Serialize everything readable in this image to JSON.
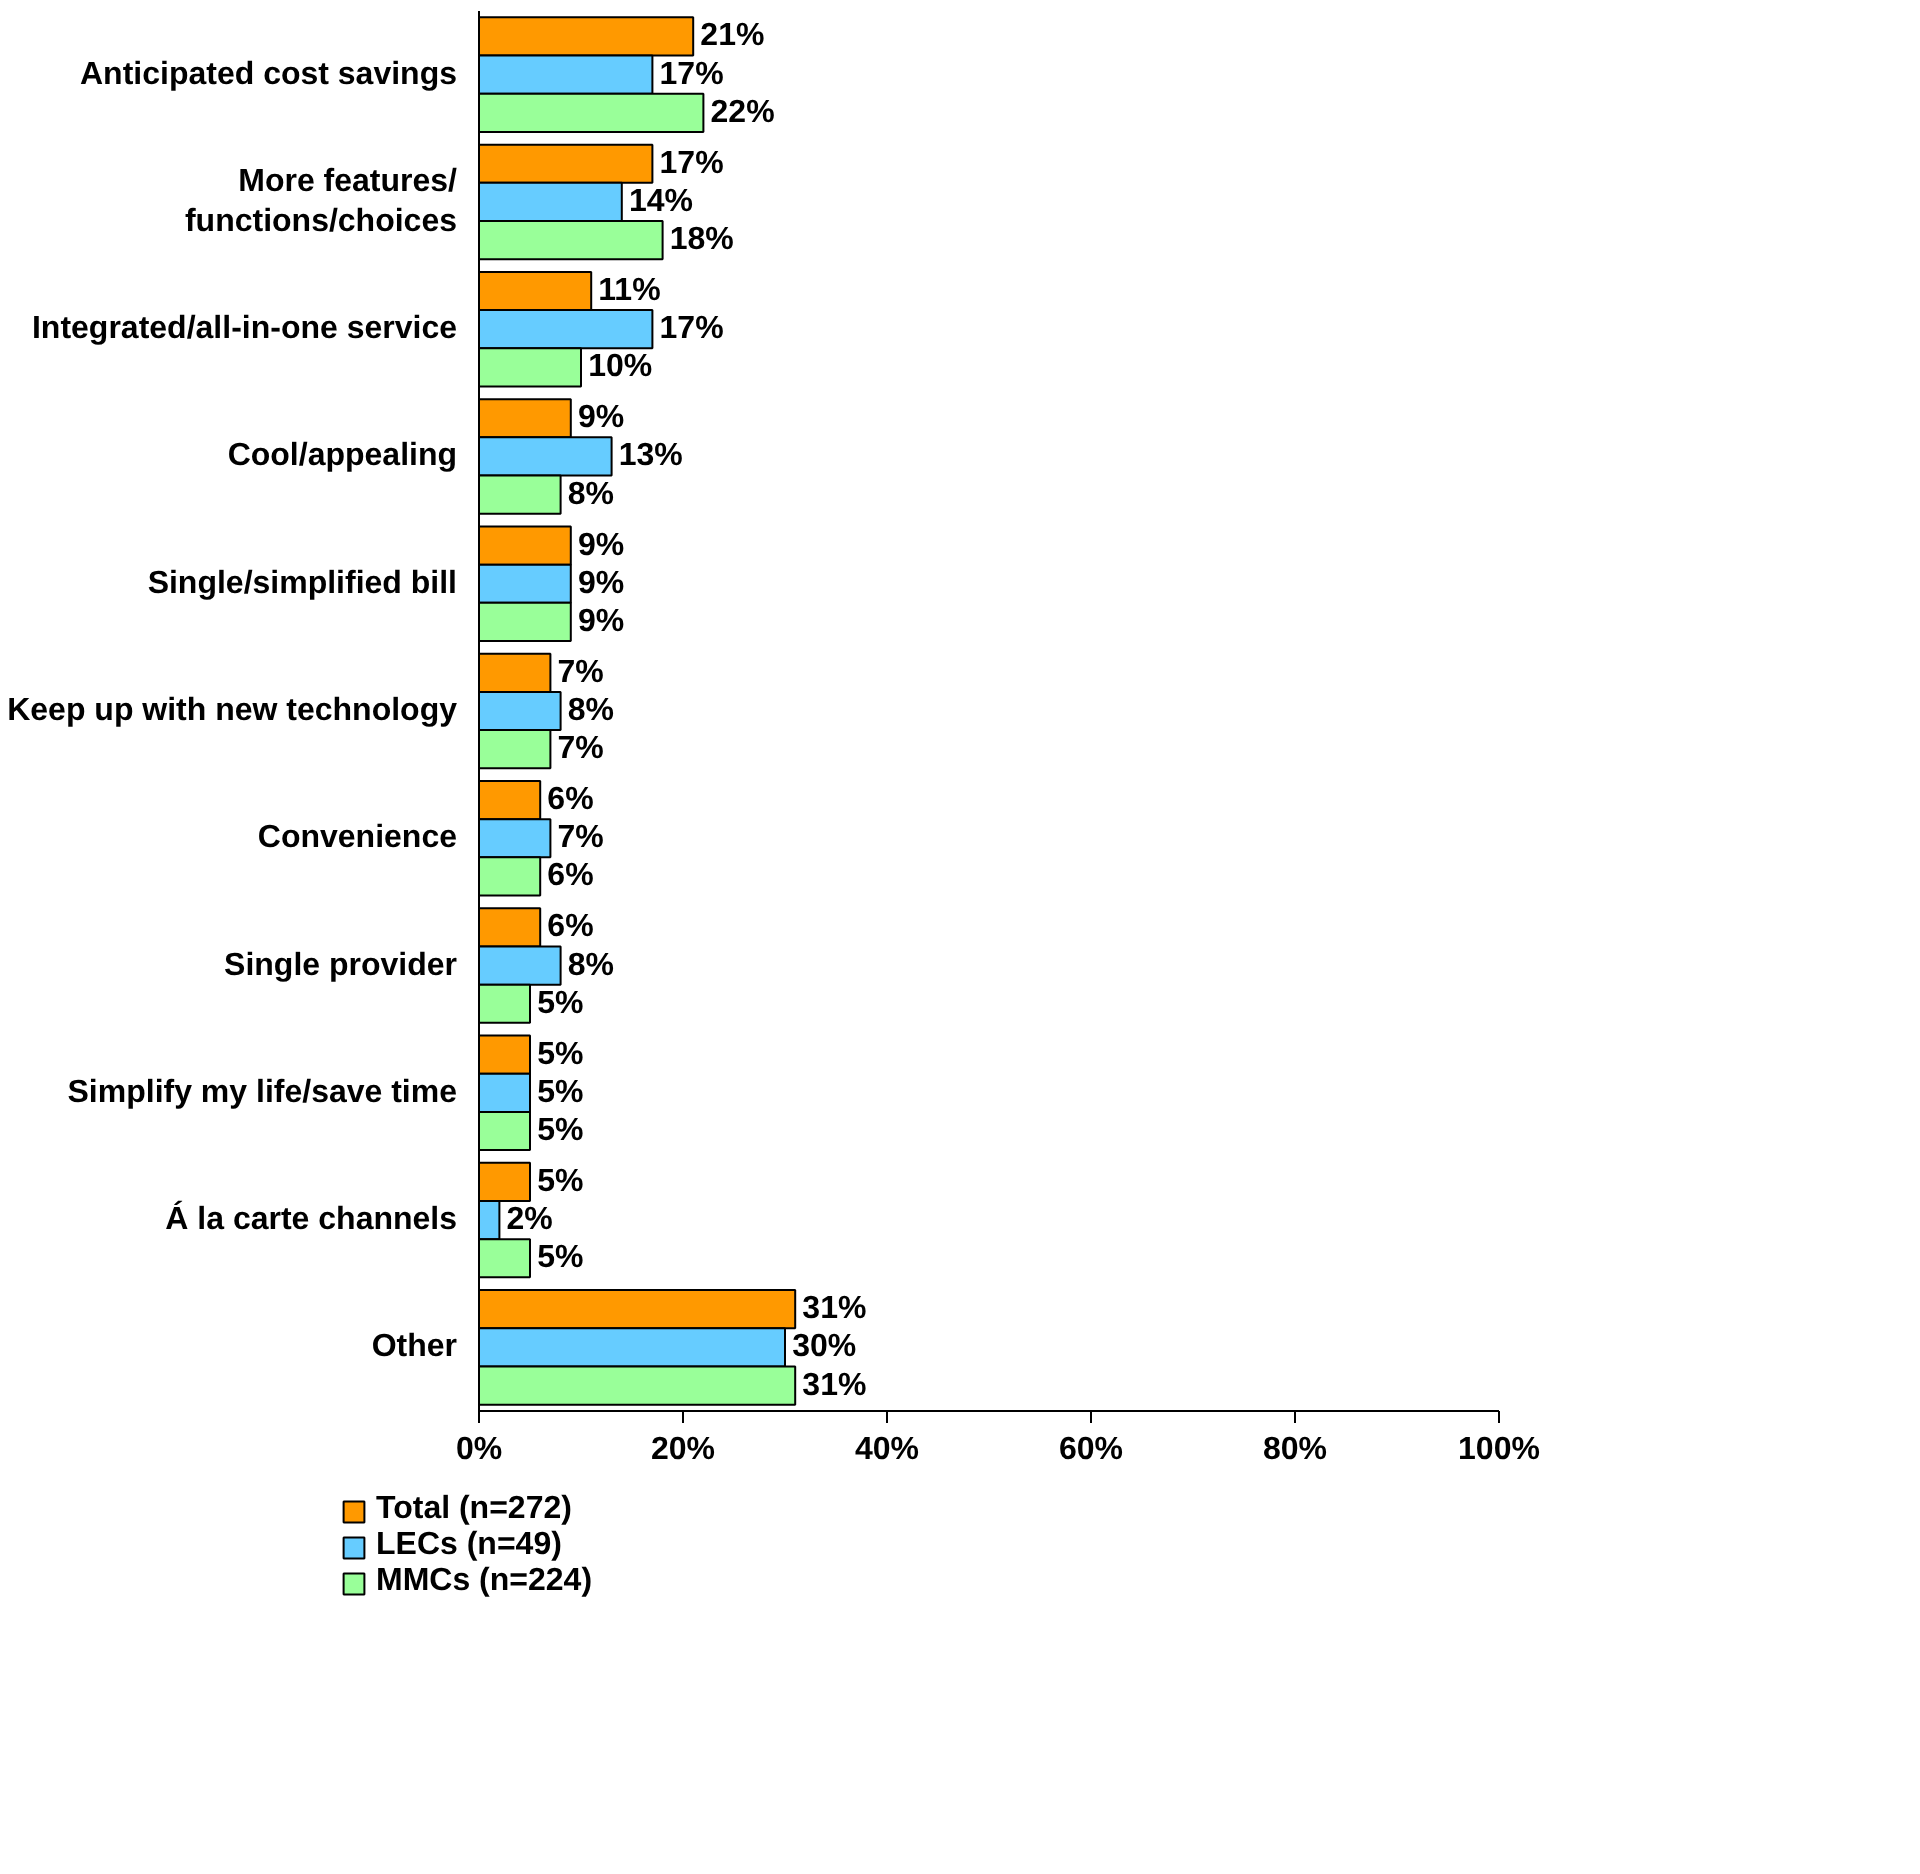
{
  "chart_data": {
    "type": "bar",
    "orientation": "horizontal",
    "categories": [
      "Anticipated cost savings",
      "More features/\nfunctions/choices",
      "Integrated/all-in-one service",
      "Cool/appealing",
      "Single/simplified bill",
      "Keep up with new technology",
      "Convenience",
      "Single provider",
      "Simplify my life/save time",
      "Á la carte channels",
      "Other"
    ],
    "series": [
      {
        "name": "Total (n=272)",
        "color": "#ff9900",
        "values": [
          21,
          17,
          11,
          9,
          9,
          7,
          6,
          6,
          5,
          5,
          31
        ],
        "value_labels": [
          "21%",
          "17%",
          "11%",
          "9%",
          "9%",
          "7%",
          "6%",
          "6%",
          "5%",
          "5%",
          "31%"
        ]
      },
      {
        "name": "LECs (n=49)",
        "color": "#66ccff",
        "values": [
          17,
          14,
          17,
          13,
          9,
          8,
          7,
          8,
          5,
          2,
          30
        ],
        "value_labels": [
          "17%",
          "14%",
          "17%",
          "13%",
          "9%",
          "8%",
          "7%",
          "8%",
          "5%",
          "2%",
          "30%"
        ]
      },
      {
        "name": "MMCs (n=224)",
        "color": "#99ff99",
        "values": [
          22,
          18,
          10,
          8,
          9,
          7,
          6,
          5,
          5,
          5,
          31
        ],
        "value_labels": [
          "22%",
          "18%",
          "10%",
          "8%",
          "9%",
          "7%",
          "6%",
          "5%",
          "5%",
          "5%",
          "31%"
        ]
      }
    ],
    "xlim": [
      0,
      100
    ],
    "xticks": [
      {
        "value": 0,
        "label": "0%"
      },
      {
        "value": 20,
        "label": "20%"
      },
      {
        "value": 40,
        "label": "40%"
      },
      {
        "value": 60,
        "label": "60%"
      },
      {
        "value": 80,
        "label": "80%"
      },
      {
        "value": 100,
        "label": "100%"
      }
    ],
    "legend": "bottom",
    "grid": false
  }
}
